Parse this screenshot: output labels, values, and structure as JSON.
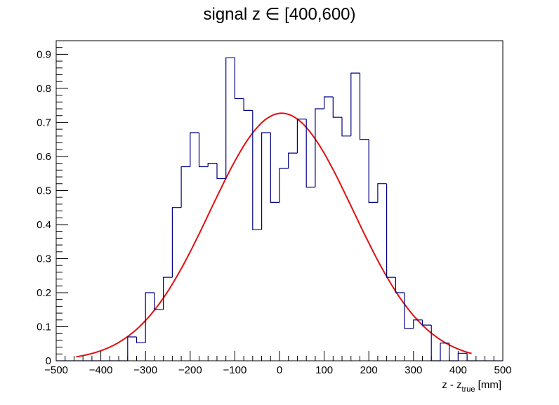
{
  "chart_data": {
    "type": "step-histogram",
    "title": "signal z ∈ [400,600)",
    "xlabel": {
      "main": "z - z",
      "subscript": "true",
      "unit": " [mm]"
    },
    "ylabel": "",
    "xlim": [
      -500,
      500
    ],
    "ylim": [
      0,
      0.94
    ],
    "x_major_ticks": [
      -500,
      -400,
      -300,
      -200,
      -100,
      0,
      100,
      200,
      300,
      400,
      500
    ],
    "x_tick_labels": [
      "−500",
      "−400",
      "−300",
      "−200",
      "−100",
      "0",
      "100",
      "200",
      "300",
      "400",
      "500"
    ],
    "y_major_ticks": [
      0,
      0.1,
      0.2,
      0.3,
      0.4,
      0.5,
      0.6,
      0.7,
      0.8,
      0.9
    ],
    "y_tick_labels": [
      "0",
      "0.1",
      "0.2",
      "0.3",
      "0.4",
      "0.5",
      "0.6",
      "0.7",
      "0.8",
      "0.9"
    ],
    "grid": false,
    "legend": "none",
    "histogram": {
      "color": "#000080",
      "bin_width": 20,
      "bin_edges_start": -500,
      "values": [
        0,
        0,
        0,
        0,
        0,
        0,
        0,
        0,
        0.07,
        0.053,
        0.2,
        0.15,
        0.245,
        0.45,
        0.57,
        0.67,
        0.57,
        0.58,
        0.535,
        0.89,
        0.77,
        0.735,
        0.385,
        0.67,
        0.465,
        0.565,
        0.61,
        0.71,
        0.51,
        0.74,
        0.775,
        0.715,
        0.66,
        0.845,
        0.65,
        0.465,
        0.52,
        0.245,
        0.2,
        0.095,
        0.12,
        0.105,
        0,
        0.052,
        0,
        0.022,
        0,
        0,
        0,
        0
      ]
    },
    "fit": {
      "type": "gaussian",
      "color": "#e01010",
      "amplitude": 0.727,
      "mean": 5,
      "sigma": 160,
      "x_range": [
        -455,
        430
      ]
    }
  }
}
